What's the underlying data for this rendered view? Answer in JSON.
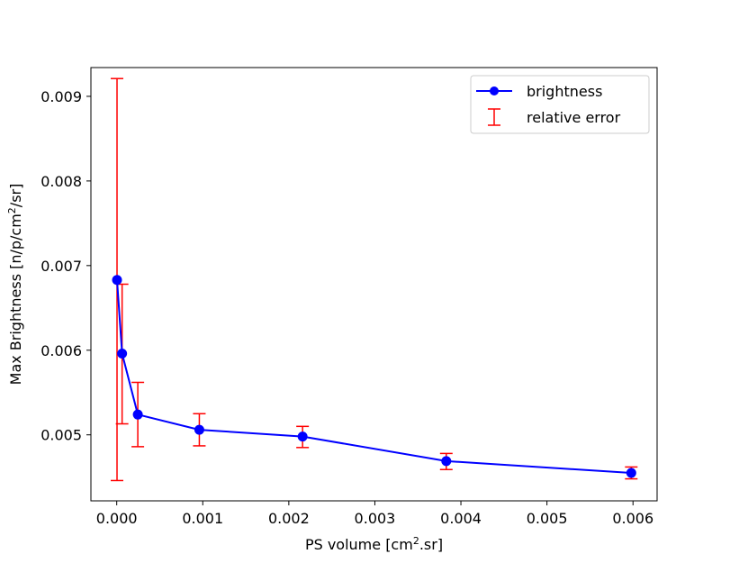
{
  "chart_data": {
    "type": "line",
    "xlabel": "PS volume [cm2.sr]",
    "xlabel_parts": {
      "pre": "PS volume [cm",
      "sup": "2",
      "post": ".sr]"
    },
    "ylabel": "Max Brightness [n/p/cm2/sr]",
    "ylabel_parts": {
      "pre": "Max Brightness [n/p/cm",
      "sup": "2",
      "post": "/sr]"
    },
    "xlim": [
      -0.0003,
      0.00628
    ],
    "ylim": [
      0.00422,
      0.00934
    ],
    "xticks": [
      0.0,
      0.001,
      0.002,
      0.003,
      0.004,
      0.005,
      0.006
    ],
    "xtick_labels": [
      "0.000",
      "0.001",
      "0.002",
      "0.003",
      "0.004",
      "0.005",
      "0.006"
    ],
    "yticks": [
      0.005,
      0.006,
      0.007,
      0.008,
      0.009
    ],
    "ytick_labels": [
      "0.005",
      "0.006",
      "0.007",
      "0.008",
      "0.009"
    ],
    "grid": false,
    "legend_position": "top-right",
    "series": [
      {
        "name": "brightness",
        "kind": "line-marker",
        "color": "#0000ff",
        "x": [
          3.5e-06,
          6.25e-05,
          0.000245,
          0.00096,
          0.00216,
          0.00383,
          0.00598
        ],
        "y": [
          0.00683,
          0.00596,
          0.00524,
          0.00506,
          0.00498,
          0.00469,
          0.00455
        ]
      },
      {
        "name": "relative error",
        "kind": "errorbar",
        "color": "#ff0000",
        "x": [
          3.5e-06,
          6.25e-05,
          0.000245,
          0.00096,
          0.00216,
          0.00383,
          0.00598
        ],
        "low": [
          0.00446,
          0.00513,
          0.00486,
          0.00487,
          0.00485,
          0.00459,
          0.00448
        ],
        "high": [
          0.00921,
          0.00678,
          0.00562,
          0.00525,
          0.0051,
          0.00478,
          0.00462
        ]
      }
    ]
  }
}
